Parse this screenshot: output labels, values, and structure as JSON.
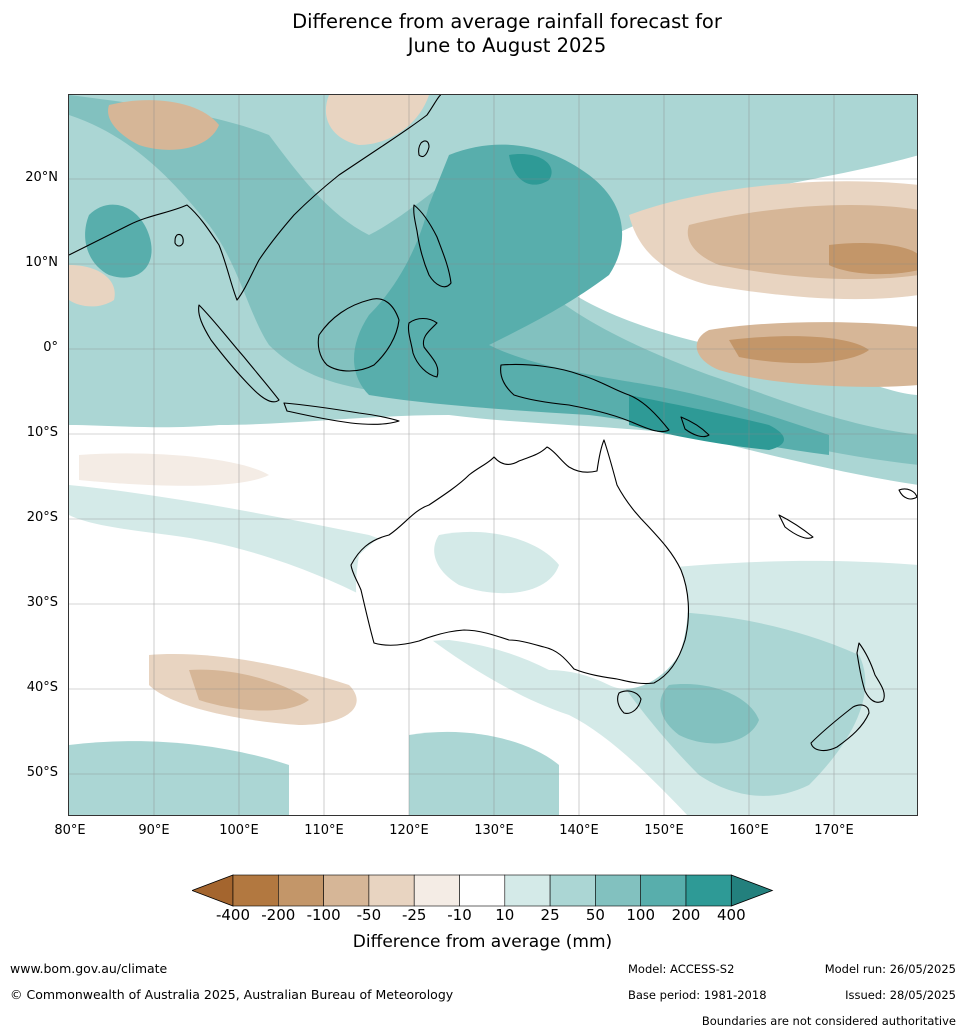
{
  "title_line1": "Difference from average rainfall forecast for",
  "title_line2": "June to August 2025",
  "lat_ticks": [
    "20°N",
    "10°N",
    "0°",
    "10°S",
    "20°S",
    "30°S",
    "40°S",
    "50°S"
  ],
  "lon_ticks": [
    "80°E",
    "90°E",
    "100°E",
    "110°E",
    "120°E",
    "130°E",
    "140°E",
    "150°E",
    "160°E",
    "170°E"
  ],
  "legend": {
    "title": "Difference from average (mm)",
    "ticks": [
      "-400",
      "-200",
      "-100",
      "-50",
      "-25",
      "-10",
      "10",
      "25",
      "50",
      "100",
      "200",
      "400"
    ],
    "colors": [
      "#a4652e",
      "#b27840",
      "#c39669",
      "#d6b697",
      "#e8d4c1",
      "#f4ece5",
      "#ffffff",
      "#d4eae8",
      "#abd6d4",
      "#82c1bf",
      "#58aeac",
      "#2e9a96",
      "#23807d"
    ]
  },
  "footer": {
    "url": "www.bom.gov.au/climate",
    "copyright": "© Commonwealth of Australia 2025, Australian Bureau of Meteorology",
    "model": "Model: ACCESS-S2",
    "base_period": "Base period: 1981-2018",
    "model_run": "Model run: 26/05/2025",
    "issued": "Issued: 28/05/2025",
    "disclaimer": "Boundaries are not considered authoritative"
  }
}
